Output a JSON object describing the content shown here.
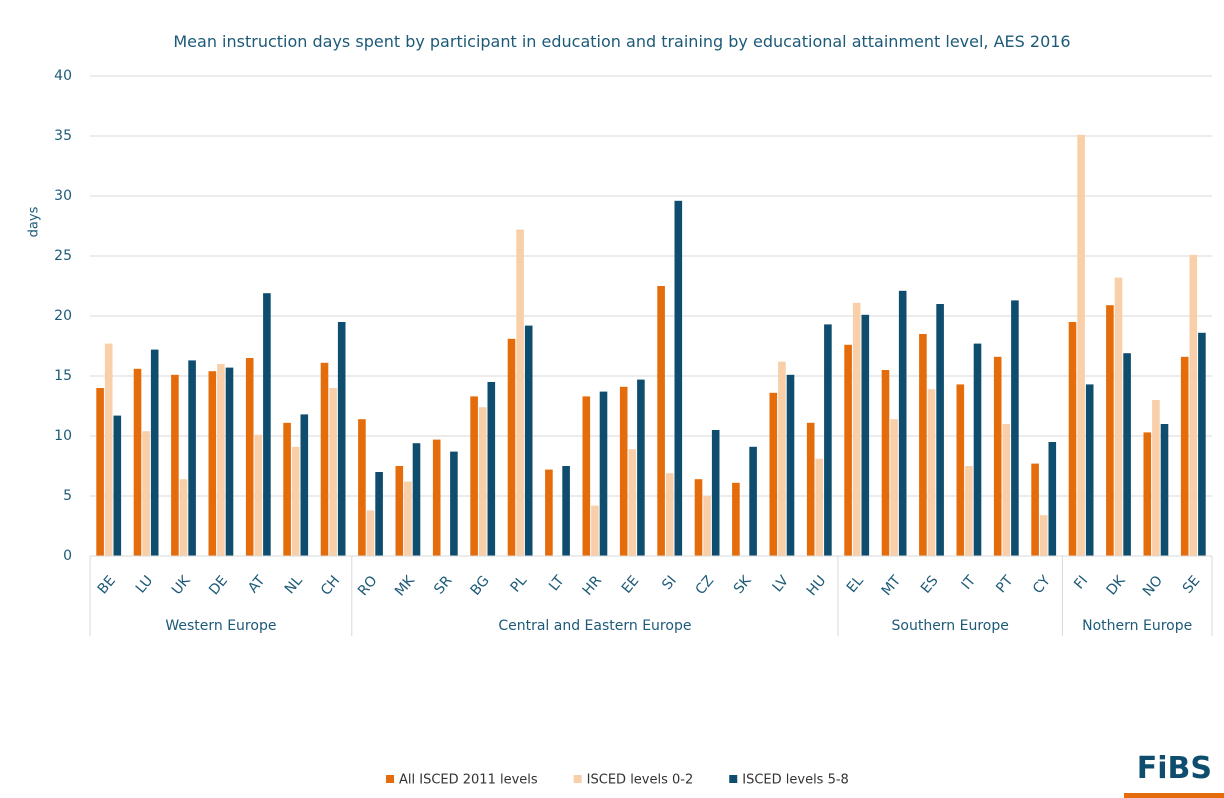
{
  "chart_data": {
    "type": "bar",
    "title": "Mean instruction days spent by participant in  education and training by educational attainment level, AES 2016",
    "y_label": "days",
    "categories": [
      "BE",
      "LU",
      "UK",
      "DE",
      "AT",
      "NL",
      "CH",
      "RO",
      "MK",
      "SR",
      "BG",
      "PL",
      "LT",
      "HR",
      "EE",
      "SI",
      "CZ",
      "SK",
      "LV",
      "HU",
      "EL",
      "MT",
      "ES",
      "IT",
      "PT",
      "CY",
      "FI",
      "DK",
      "NO",
      "SE"
    ],
    "groups": [
      {
        "name": "Western Europe",
        "count": 7
      },
      {
        "name": "Central and Eastern Europe",
        "count": 13
      },
      {
        "name": "Southern Europe",
        "count": 6
      },
      {
        "name": "Nothern Europe",
        "count": 4
      }
    ],
    "series": [
      {
        "name": "All ISCED 2011 levels",
        "color": "#e46c0a",
        "values": [
          14.0,
          15.6,
          15.1,
          15.4,
          16.5,
          11.1,
          16.1,
          11.4,
          7.5,
          9.7,
          13.3,
          18.1,
          7.2,
          13.3,
          14.1,
          22.5,
          6.4,
          6.1,
          13.6,
          11.1,
          17.6,
          15.5,
          18.5,
          14.3,
          16.6,
          7.7,
          19.5,
          20.9,
          10.3,
          16.6
        ]
      },
      {
        "name": "ISCED levels 0-2",
        "color": "#f8cfa8",
        "values": [
          17.7,
          10.4,
          6.4,
          16.0,
          10.1,
          9.1,
          14.0,
          3.8,
          6.2,
          null,
          12.4,
          27.2,
          null,
          4.2,
          8.9,
          6.9,
          5.0,
          null,
          16.2,
          8.1,
          21.1,
          11.4,
          13.9,
          7.5,
          11.0,
          3.4,
          35.1,
          23.2,
          13.0,
          25.1
        ]
      },
      {
        "name": "ISCED levels 5-8",
        "color": "#0e4d6e",
        "values": [
          11.7,
          17.2,
          16.3,
          15.7,
          21.9,
          11.8,
          19.5,
          7.0,
          9.4,
          8.7,
          14.5,
          19.2,
          7.5,
          13.7,
          14.7,
          29.6,
          10.5,
          9.1,
          15.1,
          19.3,
          20.1,
          22.1,
          21.0,
          17.7,
          21.3,
          9.5,
          14.3,
          16.9,
          11.0,
          18.6
        ]
      }
    ],
    "ylim": [
      0,
      40
    ],
    "yticks": [
      0,
      5,
      10,
      15,
      20,
      25,
      30,
      35,
      40
    ],
    "grid": true,
    "legend": "bottom"
  },
  "logo": "FiBS"
}
